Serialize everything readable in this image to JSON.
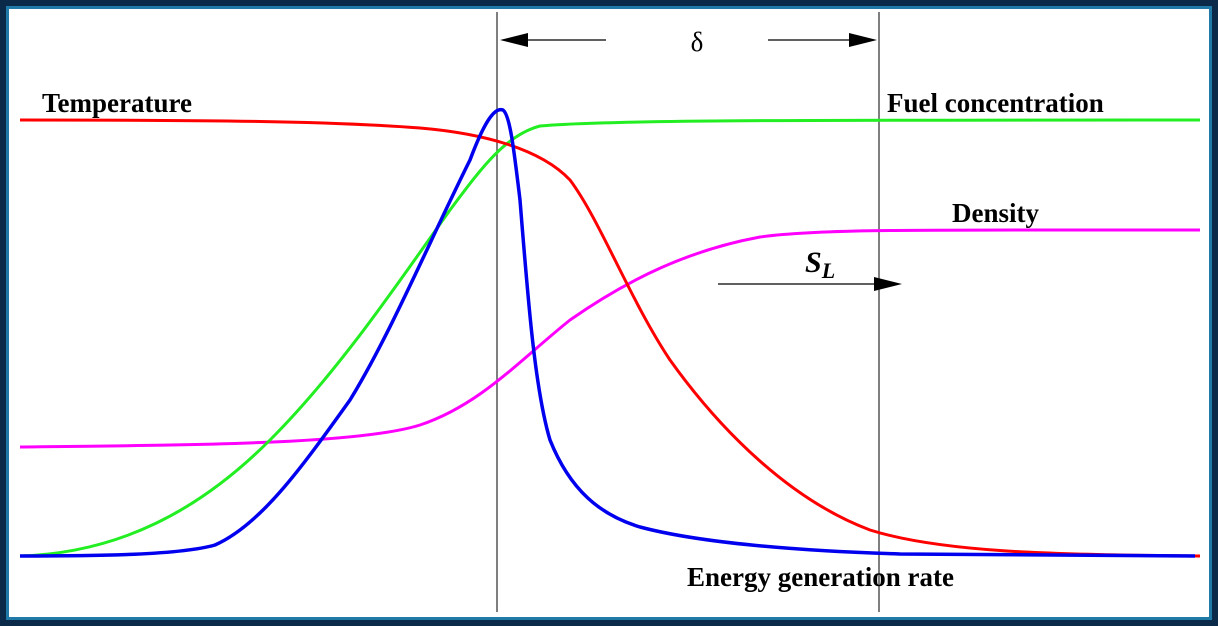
{
  "labels": {
    "temperature": "Temperature",
    "fuel_concentration": "Fuel concentration",
    "density": "Density",
    "energy_generation_rate": "Energy generation rate",
    "delta": "δ",
    "sl_main": "S",
    "sl_sub": "L"
  },
  "colors": {
    "temperature": "#ff0000",
    "fuel_concentration": "#22ee22",
    "density": "#ff00ff",
    "energy_generation_rate": "#0000ee",
    "border_outer": "#0b2a4a",
    "border_inner": "#1f7aa8"
  }
}
